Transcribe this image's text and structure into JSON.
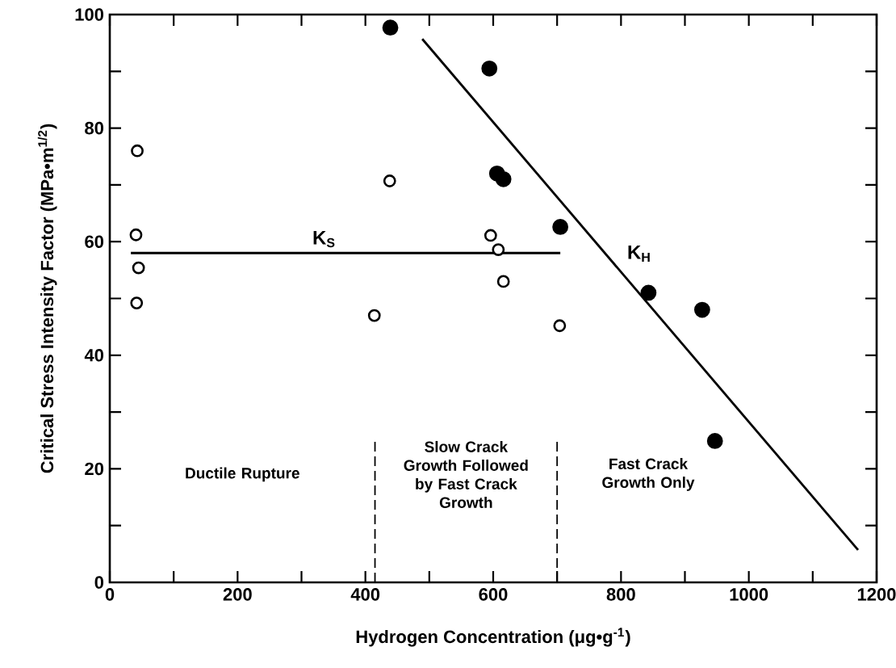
{
  "chart_data": {
    "type": "scatter",
    "xlabel": "Hydrogen Concentration (μg•g$^{-1}$)",
    "ylabel": "Critical Stress Intensity Factor (MPa•m$^{1/2}$)",
    "xlim": [
      0,
      1200
    ],
    "ylim": [
      0,
      100
    ],
    "xticks": [
      0,
      {
        "value": 100,
        "label": null
      },
      200,
      {
        "value": 300,
        "label": null
      },
      400,
      {
        "value": 500,
        "label": null
      },
      600,
      {
        "value": 700,
        "label": null
      },
      800,
      {
        "value": 900,
        "label": null
      },
      1000,
      {
        "value": 1100,
        "label": null
      },
      1200
    ],
    "yticks": [
      0,
      {
        "value": 10,
        "label": null
      },
      20,
      {
        "value": 30,
        "label": null
      },
      40,
      {
        "value": 50,
        "label": null
      },
      60,
      {
        "value": 70,
        "label": null
      },
      80,
      {
        "value": 90,
        "label": null
      },
      100
    ],
    "grid": false,
    "series": [
      {
        "marker": "circle",
        "color": "#ffffff",
        "x": [
          43,
          41,
          45,
          42,
          438,
          414,
          596,
          608,
          616,
          704
        ],
        "values": [
          76,
          61.2,
          55.4,
          49.2,
          70.7,
          47,
          61.1,
          58.6,
          53,
          45.2
        ]
      },
      {
        "marker": "circle",
        "color": "#000000",
        "x": [
          439,
          594,
          606,
          616,
          705,
          843,
          927,
          947
        ],
        "values": [
          97.7,
          90.5,
          72,
          71,
          62.6,
          51,
          48,
          24.9
        ]
      },
      {
        "type": "line",
        "name": "K$_{S}$",
        "color": "#000000",
        "line_style": "solid",
        "x": [
          33,
          705
        ],
        "values": [
          58,
          58
        ]
      },
      {
        "type": "line",
        "name": "K$_{H}$",
        "color": "#000000",
        "line_style": "solid",
        "x": [
          489,
          1171
        ],
        "values": [
          95.7,
          5.7
        ]
      }
    ],
    "ref_lines": [
      {
        "axis": "x",
        "value": 415,
        "line_style": "dashed",
        "color": "#000000"
      },
      {
        "axis": "x",
        "value": 700,
        "line_style": "dashed",
        "color": "#000000"
      }
    ],
    "annotations": [
      "Ductile Rupture",
      "Slow Crack Growth Followed by Fast Crack Growth",
      "Fast Crack Growth Only"
    ]
  }
}
